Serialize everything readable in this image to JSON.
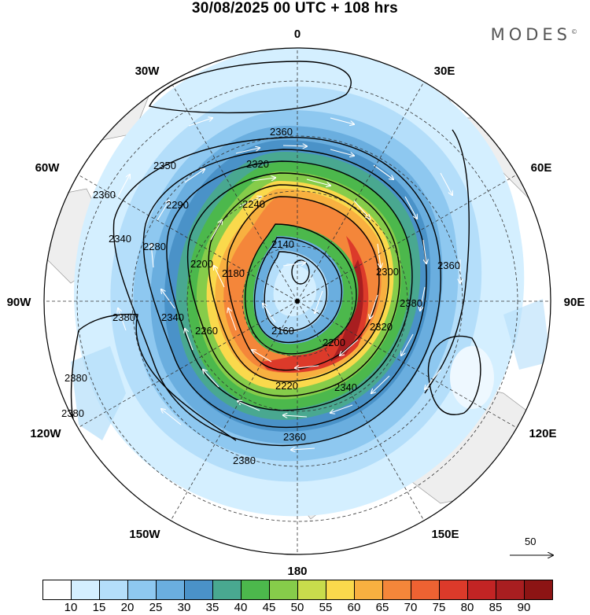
{
  "title": "30/08/2025  00 UTC  + 108 hrs",
  "brand": "MODES",
  "brand_mark": "©",
  "longitude_labels": [
    "0",
    "30E",
    "60E",
    "90E",
    "120E",
    "150E",
    "180",
    "150W",
    "120W",
    "90W",
    "60W",
    "30W"
  ],
  "contour_labels": [
    "2360",
    "2350",
    "2320",
    "2360",
    "2290",
    "2240",
    "2340",
    "2280",
    "2140",
    "2380",
    "2340",
    "2360",
    "2300",
    "2260",
    "2160",
    "2200",
    "2320",
    "2380",
    "2220",
    "2340",
    "2360",
    "2380",
    "2380",
    "2180",
    "2200",
    "2380"
  ],
  "scale_label": "50",
  "colorbar": {
    "ticks": [
      "10",
      "15",
      "20",
      "25",
      "30",
      "35",
      "40",
      "45",
      "50",
      "55",
      "60",
      "65",
      "70",
      "75",
      "80",
      "85",
      "90"
    ],
    "colors": [
      "#ffffff",
      "#d4efff",
      "#b4defa",
      "#8ec8f0",
      "#6aaedf",
      "#4a92c8",
      "#49a890",
      "#4cb84c",
      "#86cc4a",
      "#c8dc4c",
      "#fad94c",
      "#f8b040",
      "#f4863a",
      "#ee6232",
      "#dc3a2a",
      "#c22424",
      "#a81e20",
      "#8c1414"
    ]
  },
  "icons": {
    "scale_arrow": "arrow-right-icon",
    "pole": "pole-dot-icon"
  }
}
